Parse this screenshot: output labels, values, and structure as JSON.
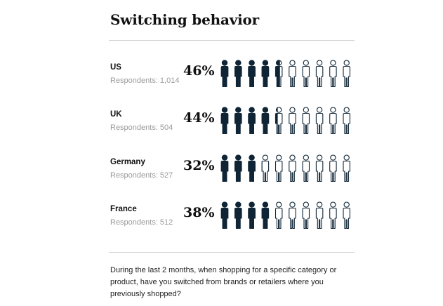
{
  "title": "Switching behavior",
  "question": "During the last 2 months, when shopping for a specific category or product, have you switched from brands or retailers where you previously shopped?",
  "colors": {
    "filled": "#0f2536",
    "outline": "#0f2536",
    "empty": "#ffffff",
    "rule": "#cfcfcf"
  },
  "icon_name": "person-icon",
  "rows": [
    {
      "country": "US",
      "respondents": "Respondents: 1,014",
      "percent_label": "46%"
    },
    {
      "country": "UK",
      "respondents": "Respondents: 504",
      "percent_label": "44%"
    },
    {
      "country": "Germany",
      "respondents": "Respondents: 527",
      "percent_label": "32%"
    },
    {
      "country": "France",
      "respondents": "Respondents: 512",
      "percent_label": "38%"
    }
  ],
  "chart_data": {
    "type": "pictogram",
    "title": "Switching behavior",
    "icons_per_row": 10,
    "categories": [
      "US",
      "UK",
      "Germany",
      "France"
    ],
    "values": [
      46,
      44,
      32,
      38
    ],
    "unit": "%",
    "respondents": [
      1014,
      504,
      527,
      512
    ]
  }
}
